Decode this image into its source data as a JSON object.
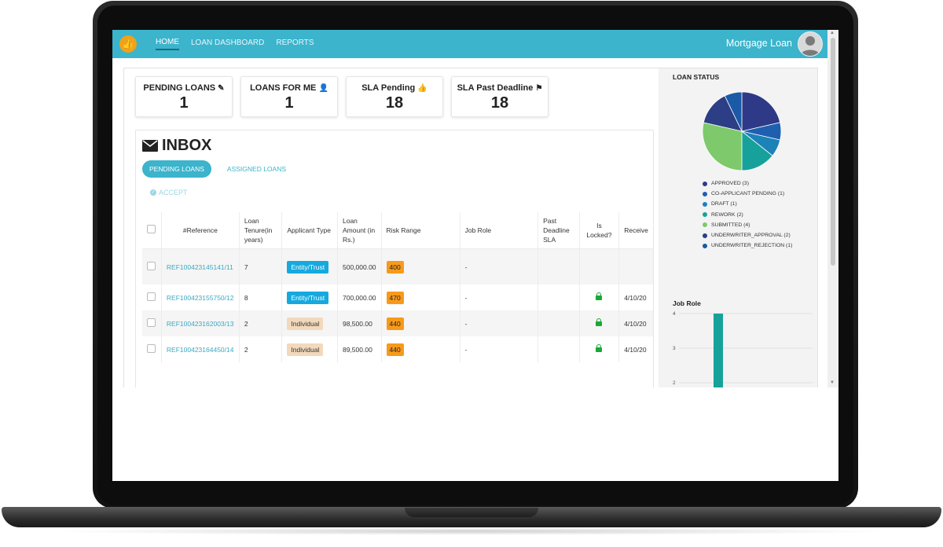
{
  "header": {
    "logo_glyph": "👍",
    "nav": [
      {
        "label": "HOME",
        "active": true
      },
      {
        "label": "LOAN DASHBOARD",
        "active": false
      },
      {
        "label": "REPORTS",
        "active": false
      }
    ],
    "app_name": "Mortgage Loan",
    "brand_color": "#3bb4cc"
  },
  "cards": [
    {
      "title": "PENDING LOANS",
      "icon": "pencil-icon",
      "value": "1"
    },
    {
      "title": "LOANS FOR ME",
      "icon": "user-check-icon",
      "value": "1"
    },
    {
      "title": "SLA Pending",
      "icon": "thumbs-up-icon",
      "value": "18"
    },
    {
      "title": "SLA Past Deadline",
      "icon": "flag-icon",
      "value": "18"
    }
  ],
  "inbox": {
    "title": "INBOX",
    "tabs": [
      {
        "label": "PENDING LOANS",
        "active": true
      },
      {
        "label": "ASSIGNED LOANS",
        "active": false
      }
    ],
    "accept_label": "ACCEPT",
    "columns": [
      "#Reference",
      "Loan Tenure(in years)",
      "Applicant Type",
      "Loan Amount (in Rs.)",
      "Risk Range",
      "Job Role",
      "Past Deadline SLA",
      "Is Locked?",
      "Receive"
    ],
    "rows": [
      {
        "ref": "REF100423145141/11",
        "tenure": "7",
        "type": "Entity/Trust",
        "amount": "500,000.00",
        "risk": "400",
        "job_role": "-",
        "past_deadline": "",
        "locked": false,
        "received": ""
      },
      {
        "ref": "REF100423155750/12",
        "tenure": "8",
        "type": "Entity/Trust",
        "amount": "700,000.00",
        "risk": "470",
        "job_role": "-",
        "past_deadline": "",
        "locked": true,
        "received": "4/10/20"
      },
      {
        "ref": "REF100423162003/13",
        "tenure": "2",
        "type": "Individual",
        "amount": "98,500.00",
        "risk": "440",
        "job_role": "-",
        "past_deadline": "",
        "locked": true,
        "received": "4/10/20"
      },
      {
        "ref": "REF100423164450/14",
        "tenure": "2",
        "type": "Individual",
        "amount": "89,500.00",
        "risk": "440",
        "job_role": "-",
        "past_deadline": "",
        "locked": true,
        "received": "4/10/20"
      }
    ]
  },
  "loan_status": {
    "title": "LOAN STATUS",
    "legend": [
      {
        "label": "APPROVED (3)",
        "color": "#2e3a87"
      },
      {
        "label": "CO-APPLICANT PENDING (1)",
        "color": "#1f5fb0"
      },
      {
        "label": "DRAFT (1)",
        "color": "#1c82b8"
      },
      {
        "label": "REWORK (2)",
        "color": "#16a29a"
      },
      {
        "label": "SUBMITTED (4)",
        "color": "#7dc96b"
      },
      {
        "label": "UNDERWRITER_APPROVAL (2)",
        "color": "#2c3e85"
      },
      {
        "label": "UNDERWRITER_REJECTION (1)",
        "color": "#1a5aa6"
      }
    ]
  },
  "chart_data": [
    {
      "type": "pie",
      "title": "LOAN STATUS",
      "categories": [
        "APPROVED",
        "CO-APPLICANT PENDING",
        "DRAFT",
        "REWORK",
        "SUBMITTED",
        "UNDERWRITER_APPROVAL",
        "UNDERWRITER_REJECTION"
      ],
      "values": [
        3,
        1,
        1,
        2,
        4,
        2,
        1
      ]
    },
    {
      "type": "bar",
      "title": "Job Role",
      "categories": [
        ""
      ],
      "values": [
        4
      ],
      "y_ticks": [
        "4",
        "3",
        "2"
      ],
      "ylim": [
        2,
        4
      ]
    }
  ]
}
